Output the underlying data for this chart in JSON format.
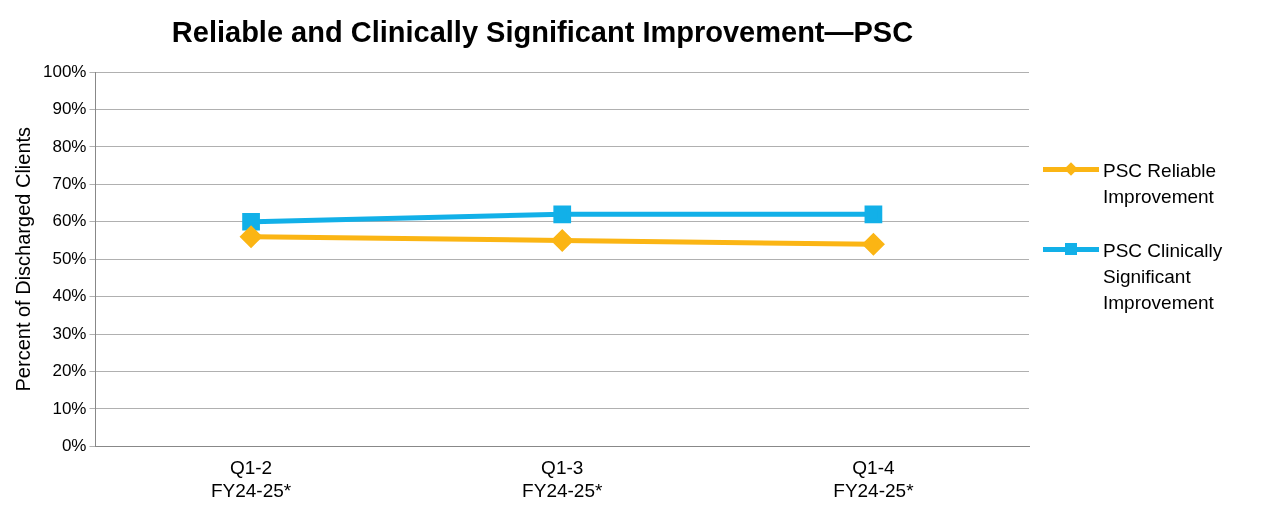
{
  "chart_data": {
    "type": "line",
    "title": "Reliable and Clinically Significant Improvement—PSC",
    "ylabel": "Percent of Discharged Clients",
    "categories": [
      "Q1-2 FY24-25*",
      "Q1-3 FY24-25*",
      "Q1-4 FY24-25*"
    ],
    "series": [
      {
        "name": "PSC Reliable Improvement",
        "color": "#fbb514",
        "values": [
          56,
          55,
          54
        ],
        "marker": "diamond"
      },
      {
        "name": "PSC Clinically Significant Improvement",
        "color": "#12b0e8",
        "values": [
          60,
          62,
          62
        ],
        "marker": "square"
      }
    ],
    "ylim": [
      0,
      100
    ],
    "yticks": [
      {
        "value": 0,
        "label": "0%"
      },
      {
        "value": 10,
        "label": "10%"
      },
      {
        "value": 20,
        "label": "20%"
      },
      {
        "value": 30,
        "label": "30%"
      },
      {
        "value": 40,
        "label": "40%"
      },
      {
        "value": 50,
        "label": "50%"
      },
      {
        "value": 60,
        "label": "60%"
      },
      {
        "value": 70,
        "label": "70%"
      },
      {
        "value": 80,
        "label": "80%"
      },
      {
        "value": 90,
        "label": "90%"
      },
      {
        "value": 100,
        "label": "100%"
      }
    ],
    "grid": "y",
    "legend": "right",
    "line_style": "solid"
  }
}
